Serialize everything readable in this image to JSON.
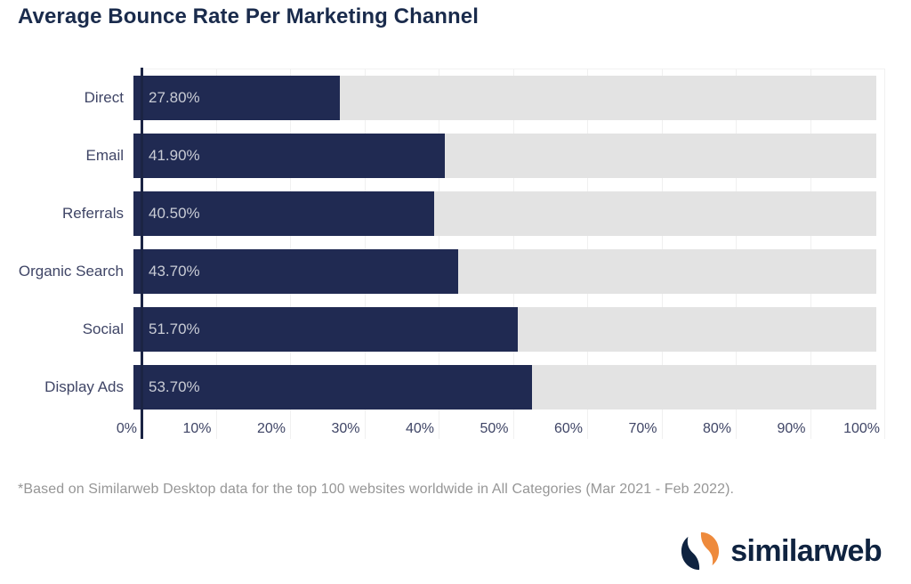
{
  "title": "Average Bounce Rate Per Marketing Channel",
  "chart_data": {
    "type": "bar",
    "orientation": "horizontal",
    "title": "Average Bounce Rate Per Marketing Channel",
    "categories": [
      "Direct",
      "Email",
      "Referrals",
      "Organic Search",
      "Social",
      "Display Ads"
    ],
    "values": [
      27.8,
      41.9,
      40.5,
      43.7,
      51.7,
      53.7
    ],
    "value_labels": [
      "27.80%",
      "41.90%",
      "40.50%",
      "43.70%",
      "51.70%",
      "53.70%"
    ],
    "x_ticks": [
      "0%",
      "10%",
      "20%",
      "30%",
      "40%",
      "50%",
      "60%",
      "70%",
      "80%",
      "90%",
      "100%"
    ],
    "xlim": [
      0,
      100
    ],
    "xlabel": "",
    "ylabel": "",
    "grid": "vertical",
    "legend": "none",
    "bar_color": "#202a52",
    "track_color": "#e3e3e3"
  },
  "footnote": "*Based on Similarweb Desktop data for the top 100 websites worldwide in All Categories (Mar 2021 - Feb 2022).",
  "logo": {
    "wordmark": "similarweb",
    "icon": "similarweb-s-mark",
    "icon_orange": "#ee8a3c",
    "icon_navy": "#0f2340"
  },
  "colors": {
    "title_text": "#1a2b4c",
    "bar_fill": "#202a52",
    "bar_track": "#e3e3e3",
    "bar_value_text": "#c9ccd5",
    "axis_label_text": "#3f4566",
    "axis_line": "#1b2444",
    "gridline": "#f0f0f0",
    "footnote_text": "#969696",
    "background": "#ffffff"
  }
}
